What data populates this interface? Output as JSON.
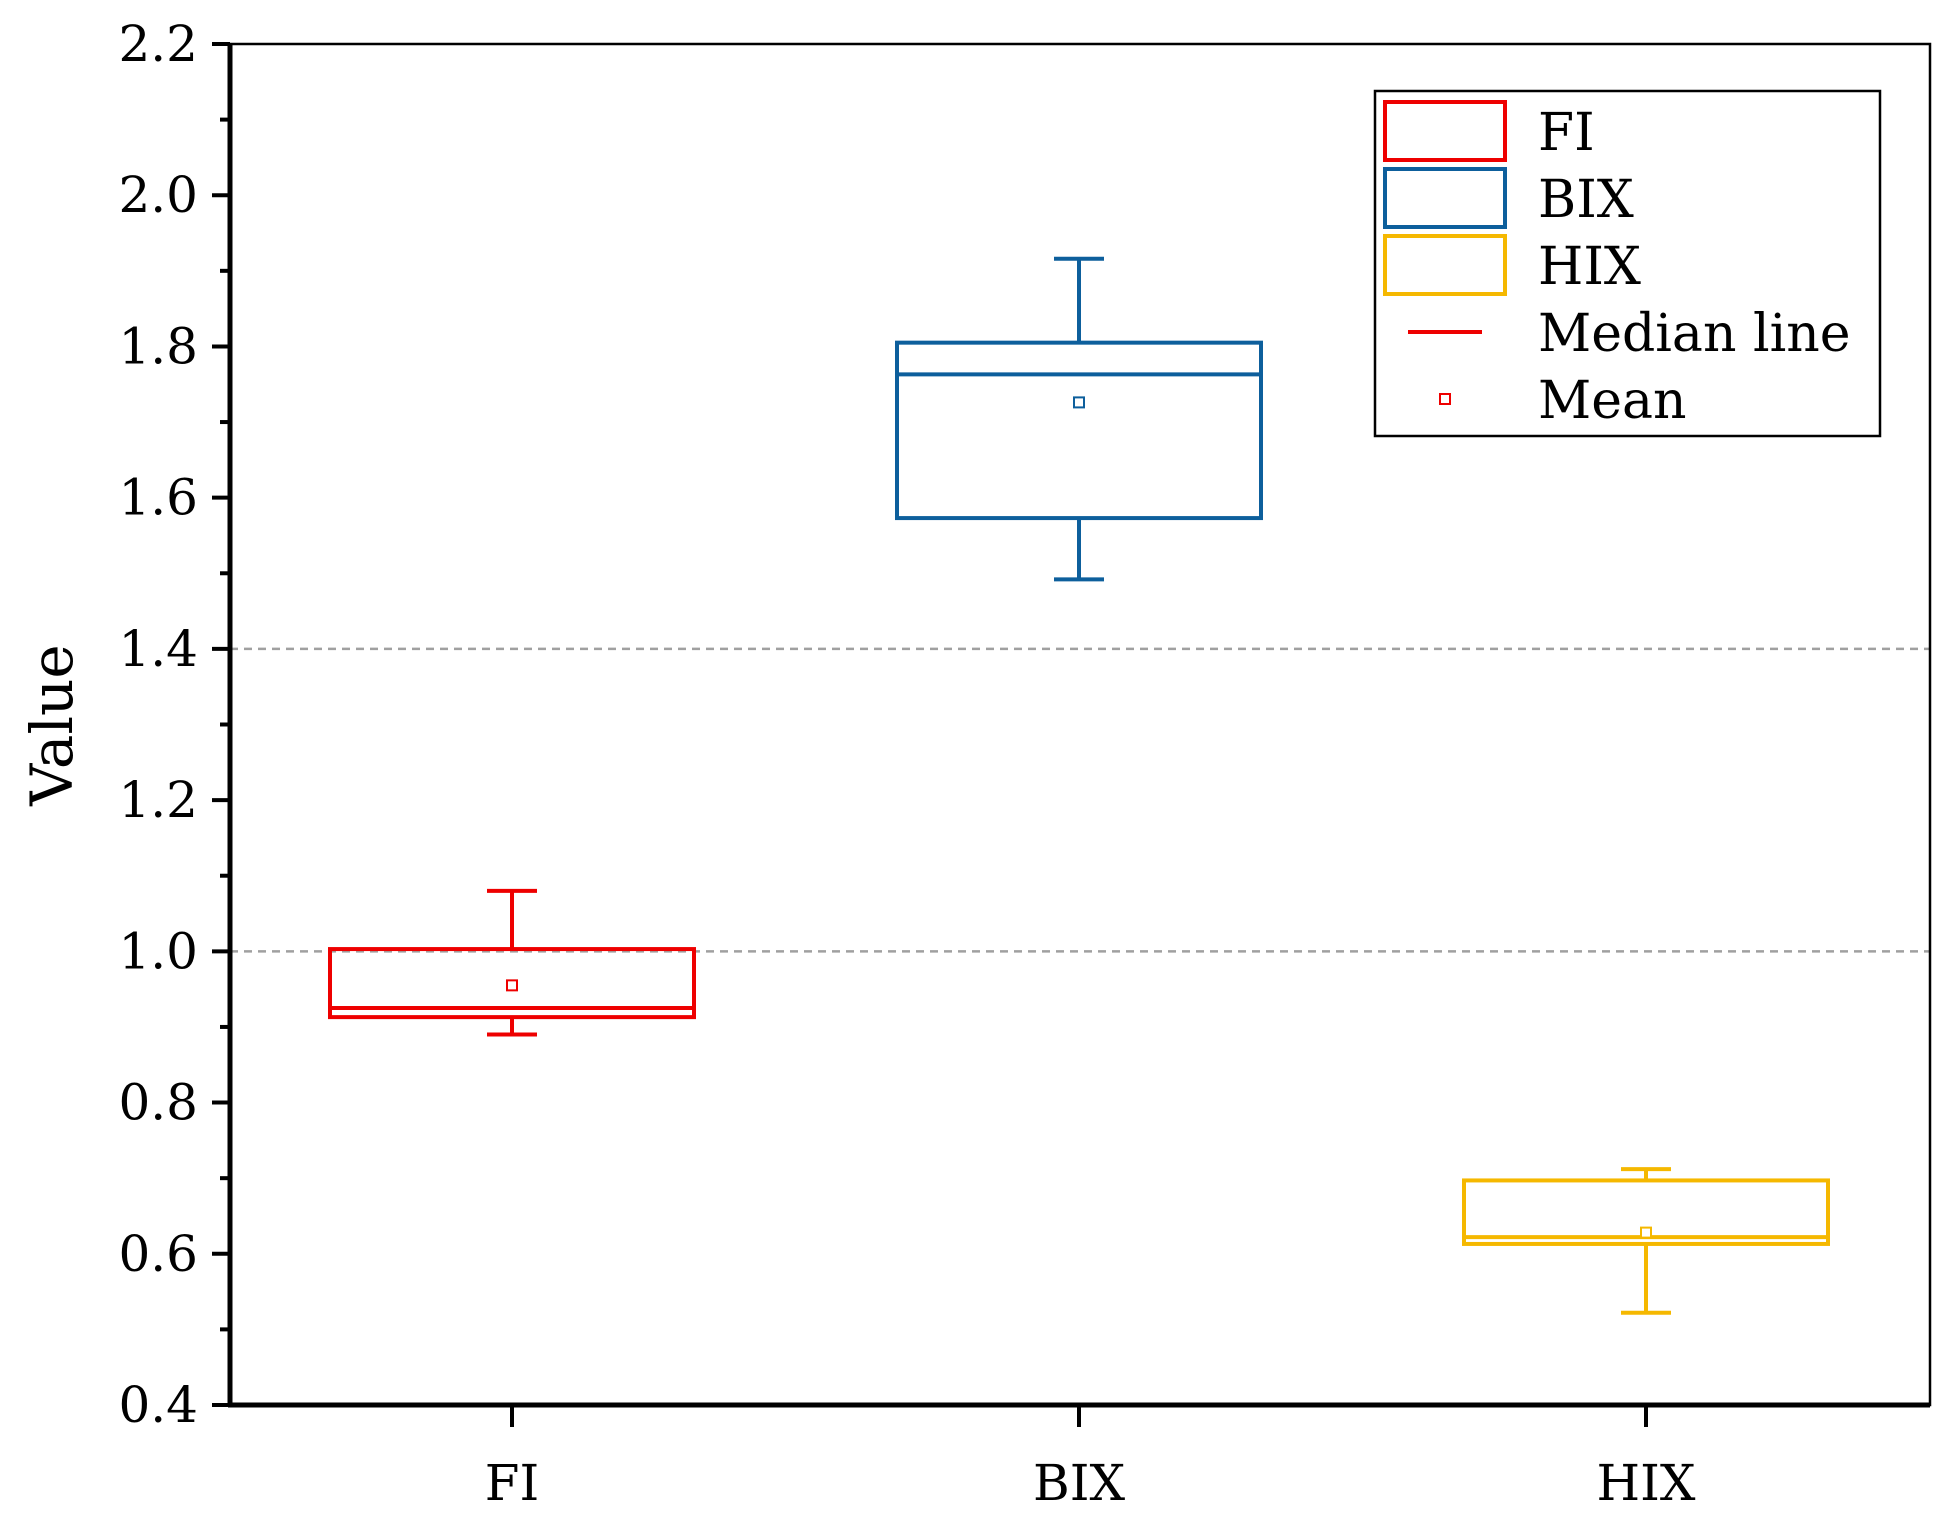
{
  "chart_data": {
    "type": "box",
    "title": "",
    "xlabel": "",
    "ylabel": "Value",
    "ylim": [
      0.4,
      2.2
    ],
    "yticks": [
      "0.4",
      "0.6",
      "0.8",
      "1.0",
      "1.2",
      "1.4",
      "1.6",
      "1.8",
      "2.0",
      "2.2"
    ],
    "categories": [
      "FI",
      "BIX",
      "HIX"
    ],
    "reference_lines": [
      1.0,
      1.4
    ],
    "series": [
      {
        "name": "FI",
        "color": "#ee0000",
        "whisker_low": 0.89,
        "q1": 0.913,
        "median": 0.925,
        "q3": 1.003,
        "whisker_high": 1.08,
        "mean": 0.955
      },
      {
        "name": "BIX",
        "color": "#0d5f9c",
        "whisker_low": 1.492,
        "q1": 1.573,
        "median": 1.763,
        "q3": 1.805,
        "whisker_high": 1.916,
        "mean": 1.726
      },
      {
        "name": "HIX",
        "color": "#f5b800",
        "whisker_low": 0.522,
        "q1": 0.613,
        "median": 0.622,
        "q3": 0.697,
        "whisker_high": 0.712,
        "mean": 0.628
      }
    ],
    "legend": {
      "position": "top-right",
      "entries": [
        {
          "label": "FI",
          "kind": "box",
          "color": "#ee0000"
        },
        {
          "label": "BIX",
          "kind": "box",
          "color": "#0d5f9c"
        },
        {
          "label": "HIX",
          "kind": "box",
          "color": "#f5b800"
        },
        {
          "label": "Median line",
          "kind": "line",
          "color": "#ee0000"
        },
        {
          "label": "Mean",
          "kind": "marker",
          "color": "#ee0000"
        }
      ]
    }
  }
}
